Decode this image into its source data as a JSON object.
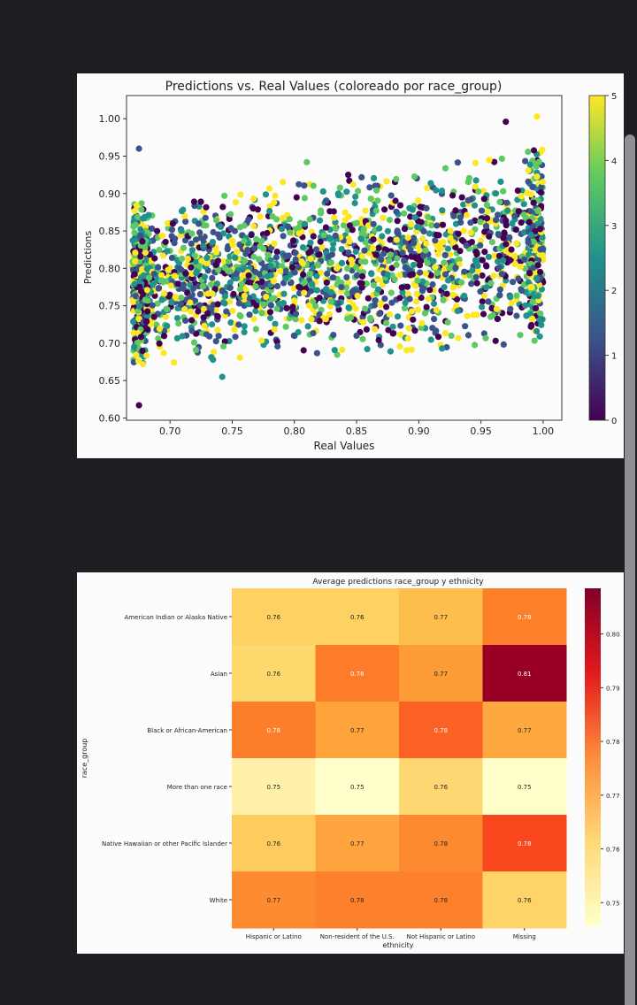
{
  "chart_data": [
    {
      "type": "scatter",
      "title": "Predictions vs. Real Values (coloreado por race_group)",
      "xlabel": "Real Values",
      "ylabel": "Predictions",
      "xlim": [
        0.665,
        1.015
      ],
      "ylim": [
        0.597,
        1.031
      ],
      "xticks": [
        "0.70",
        "0.75",
        "0.80",
        "0.85",
        "0.90",
        "0.95",
        "1.00"
      ],
      "yticks": [
        "0.60",
        "0.65",
        "0.70",
        "0.75",
        "0.80",
        "0.85",
        "0.90",
        "0.95",
        "1.00"
      ],
      "colormap": "viridis",
      "color_variable": "race_group",
      "colorbar_range": [
        0,
        5
      ],
      "colorbar_ticks": [
        "0",
        "1",
        "2",
        "3",
        "4",
        "5"
      ],
      "grid": false,
      "data_summary": {
        "x_range": [
          0.67,
          1.0
        ],
        "y_range": [
          0.62,
          1.0
        ],
        "y_band_at_x_0.70": [
          0.68,
          0.88
        ],
        "y_band_at_x_1.00": [
          0.7,
          0.96
        ],
        "outliers": [
          {
            "x": 0.675,
            "y": 0.617
          },
          {
            "x": 0.675,
            "y": 0.96
          },
          {
            "x": 0.742,
            "y": 0.655
          },
          {
            "x": 0.81,
            "y": 0.942
          },
          {
            "x": 0.995,
            "y": 1.003
          },
          {
            "x": 0.97,
            "y": 0.996
          }
        ]
      }
    },
    {
      "type": "heatmap",
      "title": "Average predictions race_group y ethnicity",
      "xlabel": "ethnicity",
      "ylabel": "race_group",
      "x_categories": [
        "Hispanic or Latino",
        "Non-resident of the U.S.",
        "Not Hispanic or Latino",
        "Missing"
      ],
      "y_categories": [
        "American Indian or Alaska Native",
        "Asian",
        "Black or African-American",
        "More than one race",
        "Native Hawaiian or other Pacific Islander",
        "White"
      ],
      "values": [
        [
          0.76,
          0.76,
          0.77,
          0.78
        ],
        [
          0.76,
          0.78,
          0.77,
          0.81
        ],
        [
          0.78,
          0.77,
          0.78,
          0.77
        ],
        [
          0.75,
          0.75,
          0.76,
          0.75
        ],
        [
          0.76,
          0.77,
          0.78,
          0.78
        ],
        [
          0.77,
          0.78,
          0.78,
          0.76
        ]
      ],
      "cell_colors": [
        [
          "#fdd162",
          "#fdd162",
          "#febe4b",
          "#fc7f2a"
        ],
        [
          "#feda6e",
          "#fc7c29",
          "#fd9b37",
          "#980026"
        ],
        [
          "#fc7e2a",
          "#fea43b",
          "#fb6024",
          "#fea840"
        ],
        [
          "#fff1a9",
          "#ffffcc",
          "#fed772",
          "#ffffc9"
        ],
        [
          "#fecb5e",
          "#fea540",
          "#fd8931",
          "#f8471c"
        ],
        [
          "#fd8b31",
          "#fd812d",
          "#fd812d",
          "#fed367"
        ]
      ],
      "colormap": "YlOrRd",
      "colorbar_ticks": [
        "0.80",
        "0.79",
        "0.78",
        "0.77",
        "0.76",
        "0.75"
      ]
    }
  ]
}
